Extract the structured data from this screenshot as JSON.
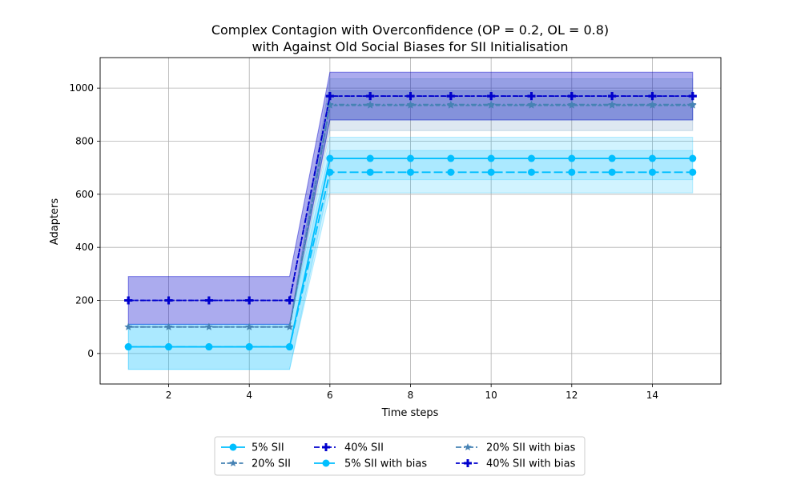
{
  "chart_data": {
    "type": "line",
    "title_line1": "Complex Contagion with Overconfidence (OP = 0.2, OL = 0.8)",
    "title_line2": "with Against Old Social Biases for SII Initialisation",
    "xlabel": "Time steps",
    "ylabel": "Adapters",
    "xlim": [
      0.3,
      15.7
    ],
    "ylim": [
      -115,
      1115
    ],
    "xticks": [
      2,
      4,
      6,
      8,
      10,
      12,
      14
    ],
    "yticks": [
      0,
      200,
      400,
      600,
      800,
      1000
    ],
    "grid": true,
    "legend_position": "bottom-center",
    "x": [
      1,
      2,
      3,
      4,
      5,
      6,
      7,
      8,
      9,
      10,
      11,
      12,
      13,
      14,
      15
    ],
    "series": [
      {
        "name": "5% SII",
        "color": "#00bfff",
        "linestyle": "solid",
        "marker": "circle",
        "values": [
          25,
          25,
          25,
          25,
          25,
          735,
          735,
          735,
          735,
          735,
          735,
          735,
          735,
          735,
          735
        ],
        "band_lower": [
          -60,
          -60,
          -60,
          -60,
          -60,
          655,
          655,
          655,
          655,
          655,
          655,
          655,
          655,
          655,
          655
        ],
        "band_upper": [
          110,
          110,
          110,
          110,
          110,
          815,
          815,
          815,
          815,
          815,
          815,
          815,
          815,
          815,
          815
        ]
      },
      {
        "name": "20% SII",
        "color": "#4682b4",
        "linestyle": "dashed",
        "marker": "star",
        "values": [
          100,
          100,
          100,
          100,
          100,
          935,
          935,
          935,
          935,
          935,
          935,
          935,
          935,
          935,
          935
        ],
        "band_lower": [
          100,
          100,
          100,
          100,
          100,
          880,
          880,
          880,
          880,
          880,
          880,
          880,
          880,
          880,
          880
        ],
        "band_upper": [
          100,
          100,
          100,
          100,
          100,
          990,
          990,
          990,
          990,
          990,
          990,
          990,
          990,
          990,
          990
        ]
      },
      {
        "name": "40% SII",
        "color": "#0000cd",
        "linestyle": "dashdot",
        "marker": "plus",
        "values": [
          200,
          200,
          200,
          200,
          200,
          970,
          970,
          970,
          970,
          970,
          970,
          970,
          970,
          970,
          970
        ],
        "band_lower": [
          110,
          110,
          110,
          110,
          110,
          880,
          880,
          880,
          880,
          880,
          880,
          880,
          880,
          880,
          880
        ],
        "band_upper": [
          290,
          290,
          290,
          290,
          290,
          1060,
          1060,
          1060,
          1060,
          1060,
          1060,
          1060,
          1060,
          1060,
          1060
        ]
      },
      {
        "name": "5% SII with bias",
        "color": "#00bfff",
        "linestyle": "longdash",
        "marker": "circle",
        "values": [
          25,
          25,
          25,
          25,
          25,
          683,
          683,
          683,
          683,
          683,
          683,
          683,
          683,
          683,
          683
        ],
        "band_lower": [
          -60,
          -60,
          -60,
          -60,
          -60,
          605,
          605,
          605,
          605,
          605,
          605,
          605,
          605,
          605,
          605
        ],
        "band_upper": [
          110,
          110,
          110,
          110,
          110,
          765,
          765,
          765,
          765,
          765,
          765,
          765,
          765,
          765,
          765
        ]
      },
      {
        "name": "20% SII with bias",
        "color": "#4682b4",
        "linestyle": "dashdot",
        "marker": "star",
        "values": [
          100,
          100,
          100,
          100,
          100,
          938,
          938,
          938,
          938,
          938,
          938,
          938,
          938,
          938,
          938
        ],
        "band_lower": [
          100,
          100,
          100,
          100,
          100,
          840,
          840,
          840,
          840,
          840,
          840,
          840,
          840,
          840,
          840
        ],
        "band_upper": [
          100,
          100,
          100,
          100,
          100,
          1035,
          1035,
          1035,
          1035,
          1035,
          1035,
          1035,
          1035,
          1035,
          1035
        ]
      },
      {
        "name": "40% SII with bias",
        "color": "#0000cd",
        "linestyle": "dashed",
        "marker": "plus",
        "values": [
          200,
          200,
          200,
          200,
          200,
          970,
          970,
          970,
          970,
          970,
          970,
          970,
          970,
          970,
          970
        ],
        "band_lower": [
          110,
          110,
          110,
          110,
          110,
          880,
          880,
          880,
          880,
          880,
          880,
          880,
          880,
          880,
          880
        ],
        "band_upper": [
          290,
          290,
          290,
          290,
          290,
          1060,
          1060,
          1060,
          1060,
          1060,
          1060,
          1060,
          1060,
          1060,
          1060
        ]
      }
    ]
  }
}
